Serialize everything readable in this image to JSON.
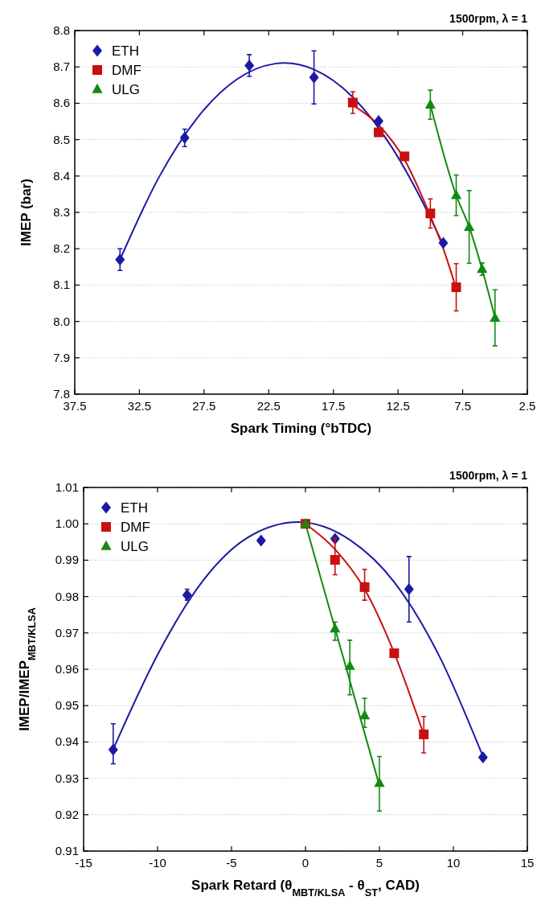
{
  "chart_data": [
    {
      "type": "scatter",
      "title": "1500rpm, λ = 1",
      "xlabel": "Spark Timing (°bTDC)",
      "ylabel": "IMEP (bar)",
      "xlim": [
        37.5,
        2.5
      ],
      "xticks": [
        37.5,
        32.5,
        27.5,
        22.5,
        17.5,
        12.5,
        7.5,
        2.5
      ],
      "ylim": [
        7.8,
        8.8
      ],
      "yticks": [
        7.8,
        7.9,
        {
          "value": 8,
          "label": "8.0"
        },
        8.1,
        8.2,
        8.3,
        8.4,
        8.5,
        8.6,
        8.7,
        8.8
      ],
      "grid": "y",
      "legend": "top left",
      "series": [
        {
          "name": "ETH",
          "color": "#1a1aa6",
          "marker": "diamond",
          "x": [
            34,
            29,
            24,
            19,
            14,
            9
          ],
          "values": [
            8.17,
            8.505,
            8.704,
            8.671,
            8.551,
            8.216
          ],
          "errors": [
            0.03,
            0.024,
            0.03,
            0.073,
            null,
            null
          ]
        },
        {
          "name": "DMF",
          "color": "#c81010",
          "marker": "square",
          "x": [
            16,
            14,
            12,
            10,
            8
          ],
          "values": [
            8.602,
            8.52,
            8.454,
            8.297,
            8.094
          ],
          "errors": [
            0.03,
            null,
            null,
            0.04,
            0.065
          ]
        },
        {
          "name": "ULG",
          "color": "#138a13",
          "marker": "triangle",
          "x": [
            10,
            8,
            7,
            6,
            5
          ],
          "values": [
            8.596,
            8.347,
            8.26,
            8.144,
            8.01
          ],
          "errors": [
            0.04,
            0.056,
            0.1,
            0.017,
            0.077
          ]
        },
        {
          "type": "line",
          "color": "#1a1aa6",
          "x": [
            34,
            31,
            28,
            25,
            22,
            21.3,
            19,
            16,
            13,
            11,
            9
          ],
          "values": [
            8.17,
            8.396,
            8.561,
            8.665,
            8.709,
            8.711,
            8.693,
            8.617,
            8.48,
            8.356,
            8.21
          ]
        },
        {
          "type": "line",
          "color": "#c81010",
          "x": [
            16,
            14,
            12,
            10,
            9,
            8
          ],
          "values": [
            8.595,
            8.54,
            8.445,
            8.29,
            8.2,
            8.09
          ]
        },
        {
          "type": "line",
          "color": "#138a13",
          "x": [
            10,
            8,
            7,
            6,
            5
          ],
          "values": [
            8.596,
            8.347,
            8.26,
            8.144,
            8.01
          ]
        }
      ]
    },
    {
      "type": "scatter",
      "title": "1500rpm, λ = 1",
      "xlabel": "Spark Retard (θ$_{MBT/KLSA}$ - θ$_{ST}$, CAD)",
      "ylabel": "IMEP/IMEP$_{MBT/KLSA}$",
      "xlim": [
        -15,
        15
      ],
      "xticks": [
        -15,
        -10,
        -5,
        0,
        5,
        10,
        15
      ],
      "ylim": [
        0.91,
        1.01
      ],
      "yticks": [
        0.91,
        0.92,
        0.93,
        0.94,
        0.95,
        0.96,
        0.97,
        0.98,
        0.99,
        {
          "value": 1,
          "label": "1.00"
        },
        1.01
      ],
      "grid": "y",
      "legend": "top left",
      "series": [
        {
          "name": "ETH",
          "color": "#1a1aa6",
          "marker": "diamond",
          "x": [
            -13,
            -8,
            -3,
            2,
            7,
            12
          ],
          "values": [
            0.9379,
            0.9804,
            0.9954,
            0.9959,
            0.982,
            0.9358
          ],
          "errors": [
            [
              0.934,
              0.945
            ],
            [
              0.979,
              0.982
            ],
            null,
            null,
            [
              0.973,
              0.991
            ],
            null
          ]
        },
        {
          "name": "DMF",
          "color": "#c81010",
          "marker": "square",
          "x": [
            0,
            2,
            4,
            6,
            8
          ],
          "values": [
            1.0,
            0.9901,
            0.9826,
            0.9644,
            0.9421
          ],
          "errors": [
            null,
            [
              0.986,
              0.996
            ],
            [
              0.979,
              0.9875
            ],
            null,
            [
              0.937,
              0.947
            ]
          ]
        },
        {
          "name": "ULG",
          "color": "#138a13",
          "marker": "triangle",
          "x": [
            0,
            2,
            3,
            4,
            5
          ],
          "values": [
            1.0,
            0.9712,
            0.9609,
            0.9473,
            0.9287
          ],
          "errors": [
            null,
            [
              0.968,
              0.973
            ],
            [
              0.953,
              0.968
            ],
            [
              0.944,
              0.952
            ],
            [
              0.921,
              0.936
            ]
          ]
        },
        {
          "type": "line",
          "color": "#1a1aa6",
          "x": [
            -13,
            -10,
            -7,
            -4,
            -0.5,
            3,
            6,
            9,
            12
          ],
          "values": [
            0.938,
            0.964,
            0.984,
            0.996,
            1.0005,
            0.9956,
            0.984,
            0.964,
            0.936
          ]
        },
        {
          "type": "line",
          "color": "#c81010",
          "x": [
            0,
            2,
            4,
            6,
            8
          ],
          "values": [
            1.0,
            0.993,
            0.982,
            0.9645,
            0.942
          ]
        },
        {
          "type": "line",
          "color": "#138a13",
          "x": [
            0,
            5
          ],
          "values": [
            1.0,
            0.928
          ]
        }
      ]
    }
  ]
}
